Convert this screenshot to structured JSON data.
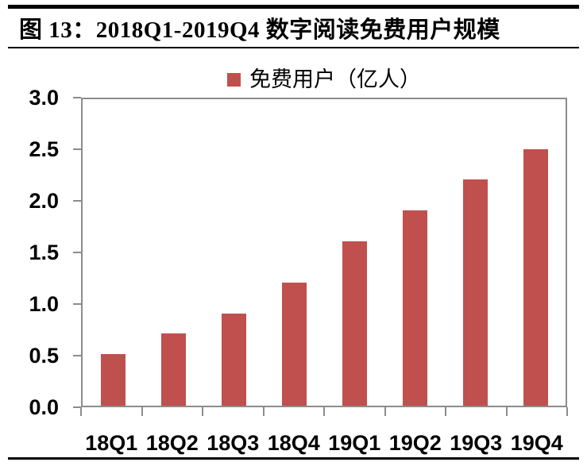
{
  "header": {
    "title": "图 13：2018Q1-2019Q4 数字阅读免费用户规模"
  },
  "chart_data": {
    "type": "bar",
    "title": "图 13：2018Q1-2019Q4 数字阅读免费用户规模",
    "legend": "免费用户（亿人）",
    "legend_position": "top-center",
    "categories": [
      "18Q1",
      "18Q2",
      "18Q3",
      "18Q4",
      "19Q1",
      "19Q2",
      "19Q3",
      "19Q4"
    ],
    "values": [
      0.5,
      0.7,
      0.9,
      1.2,
      1.6,
      1.9,
      2.2,
      2.5
    ],
    "ylim": [
      0.0,
      3.0
    ],
    "ytick_step": 0.5,
    "yticks": [
      "0.0",
      "0.5",
      "1.0",
      "1.5",
      "2.0",
      "2.5",
      "3.0"
    ],
    "grid": false,
    "colors": {
      "bar": "#C0504D",
      "axis": "#8C8C8C",
      "text": "#000000",
      "rule": "#000000"
    }
  }
}
